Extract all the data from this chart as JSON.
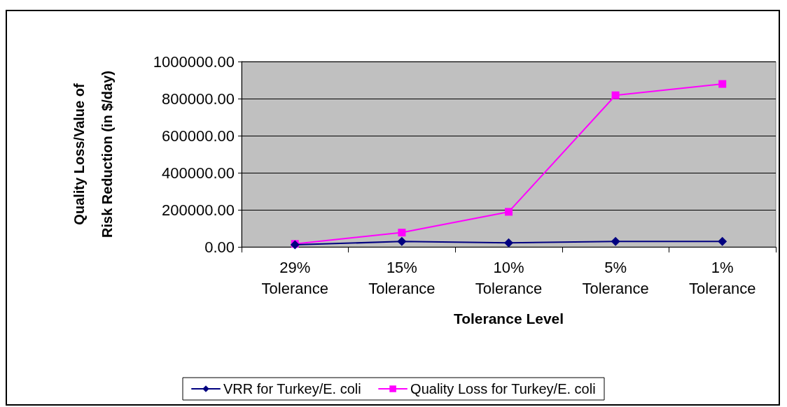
{
  "chart_data": {
    "type": "line",
    "xlabel": "Tolerance Level",
    "ylabel": "Quality Loss/Value of Risk Reduction (in $/day)",
    "categories": [
      "29% Tolerance",
      "15% Tolerance",
      "10% Tolerance",
      "5% Tolerance",
      "1% Tolerance"
    ],
    "series": [
      {
        "name": "VRR for Turkey/E. coli",
        "color": "#000080",
        "marker": "diamond",
        "values": [
          11000,
          29000,
          22000,
          29000,
          29000
        ]
      },
      {
        "name": "Quality Loss for Turkey/E. coli",
        "color": "#ff00ff",
        "marker": "square",
        "values": [
          16000,
          77000,
          189000,
          818000,
          879000
        ]
      }
    ],
    "ylim": [
      0,
      1000000
    ],
    "yticks": [
      {
        "value": 0,
        "label": "0.00"
      },
      {
        "value": 200000,
        "label": "200000.00"
      },
      {
        "value": 400000,
        "label": "400000.00"
      },
      {
        "value": 600000,
        "label": "600000.00"
      },
      {
        "value": 800000,
        "label": "800000.00"
      },
      {
        "value": 1000000,
        "label": "1000000.00"
      }
    ],
    "grid": "y",
    "legend": "bottom",
    "line_style": "solid"
  }
}
